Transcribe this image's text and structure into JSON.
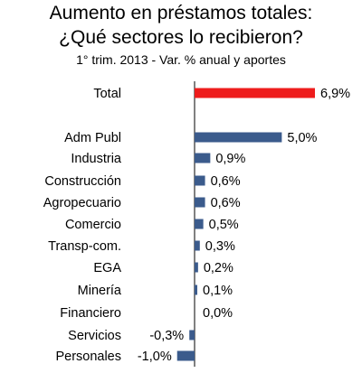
{
  "chart_data": {
    "type": "bar",
    "orientation": "horizontal",
    "title": "Aumento en préstamos totales:",
    "subtitle_line2": "¿Qué sectores lo recibieron?",
    "subtitle": "1° trim. 2013 - Var. % anual y aportes",
    "categories": [
      "Total",
      "Adm Publ",
      "Industria",
      "Construcción",
      "Agropecuario",
      "Comercio",
      "Transp-com.",
      "EGA",
      "Minería",
      "Financiero",
      "Servicios",
      "Personales"
    ],
    "values": [
      6.9,
      5.0,
      0.9,
      0.6,
      0.6,
      0.5,
      0.3,
      0.2,
      0.1,
      0.0,
      -0.3,
      -1.0
    ],
    "value_labels": [
      "6,9%",
      "5,0%",
      "0,9%",
      "0,6%",
      "0,6%",
      "0,5%",
      "0,3%",
      "0,2%",
      "0,1%",
      "0,0%",
      "-0,3%",
      "-1,0%"
    ],
    "highlight_color": "#ee1c1c",
    "bar_color": "#3b5b8c",
    "axis_color": "#000000"
  }
}
